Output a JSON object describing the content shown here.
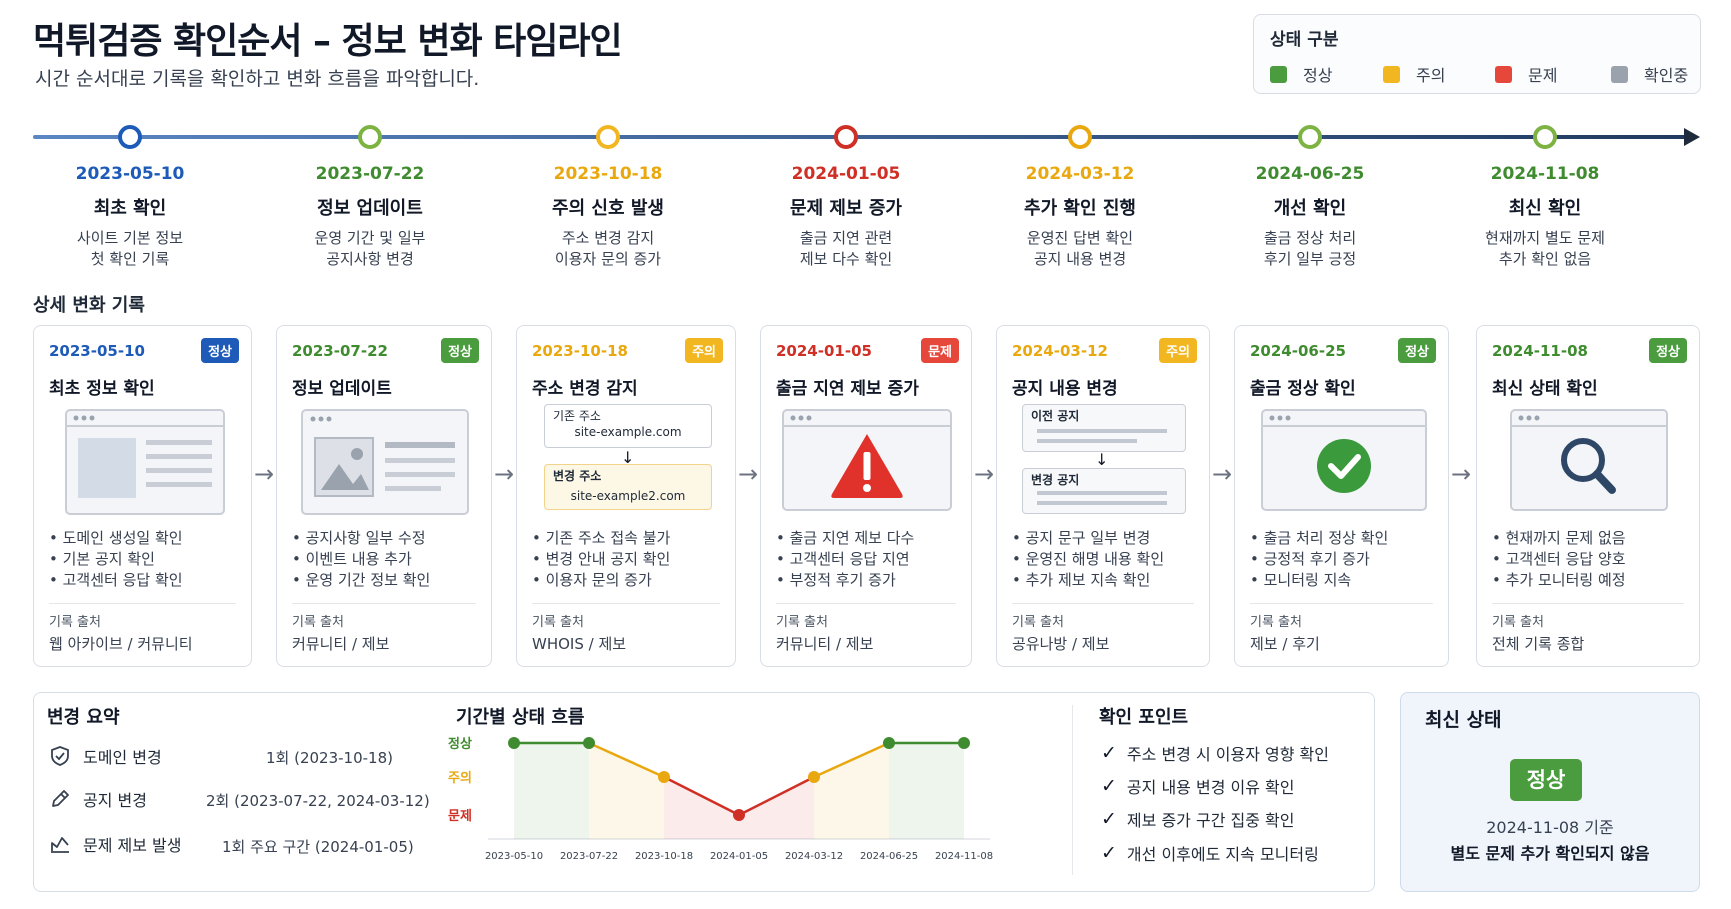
{
  "header": {
    "title": "먹튀검증 확인순서 – 정보 변화 타임라인",
    "subtitle": "시간 순서대로 기록을 확인하고 변화 흐름을 파악합니다."
  },
  "legend": {
    "title": "상태 구분",
    "items": [
      {
        "label": "정상",
        "color": "#4a9c3f"
      },
      {
        "label": "주의",
        "color": "#f2b620"
      },
      {
        "label": "문제",
        "color": "#e5473b"
      },
      {
        "label": "확인중",
        "color": "#9aa3ad"
      }
    ]
  },
  "timeline": [
    {
      "date": "2023-05-10",
      "title": "최초 확인",
      "desc1": "사이트 기본 정보",
      "desc2": "첫 확인 기록",
      "color": "#1e5bb8"
    },
    {
      "date": "2023-07-22",
      "title": "정보 업데이트",
      "desc1": "운영 기간 및 일부",
      "desc2": "공지사항 변경",
      "color": "#3f8b2f"
    },
    {
      "date": "2023-10-18",
      "title": "주의 신호 발생",
      "desc1": "주소 변경 감지",
      "desc2": "이용자 문의 증가",
      "color": "#e9a80f"
    },
    {
      "date": "2024-01-05",
      "title": "문제 제보 증가",
      "desc1": "출금 지연 관련",
      "desc2": "제보 다수 확인",
      "color": "#cf2f25"
    },
    {
      "date": "2024-03-12",
      "title": "추가 확인 진행",
      "desc1": "운영진 답변 확인",
      "desc2": "공지 내용 변경",
      "color": "#e9a80f"
    },
    {
      "date": "2024-06-25",
      "title": "개선 확인",
      "desc1": "출금 정상 처리",
      "desc2": "후기 일부 긍정",
      "color": "#3f8b2f"
    },
    {
      "date": "2024-11-08",
      "title": "최신 확인",
      "desc1": "현재까지 별도 문제",
      "desc2": "추가 확인 없음",
      "color": "#3f8b2f"
    }
  ],
  "detail_label": "상세 변화 기록",
  "cards": [
    {
      "date": "2023-05-10",
      "badge": "정상",
      "title": "최초 정보 확인",
      "bullets": [
        "도메인 생성일 확인",
        "기본 공지 확인",
        "고객센터 응답 확인"
      ],
      "source_label": "기록 출처",
      "source": "웹 아카이브 / 커뮤니티",
      "date_color": "#1e5bb8",
      "badge_color": "#1e5bb8"
    },
    {
      "date": "2023-07-22",
      "badge": "정상",
      "title": "정보 업데이트",
      "bullets": [
        "공지사항 일부 수정",
        "이벤트 내용 추가",
        "운영 기간 정보 확인"
      ],
      "source_label": "기록 출처",
      "source": "커뮤니티 / 제보",
      "date_color": "#3f8b2f",
      "badge_color": "#4a9c3f"
    },
    {
      "date": "2023-10-18",
      "badge": "주의",
      "title": "주소 변경 감지",
      "bullets": [
        "기존 주소 접속 불가",
        "변경 안내 공지 확인",
        "이용자 문의 증가"
      ],
      "source_label": "기록 출처",
      "source": "WHOIS / 제보",
      "date_color": "#e9a80f",
      "badge_color": "#f2b620",
      "illus": {
        "old_label": "기존 주소",
        "old_url": "site-example.com",
        "new_label": "변경 주소",
        "new_url": "site-example2.com"
      }
    },
    {
      "date": "2024-01-05",
      "badge": "문제",
      "title": "출금 지연 제보 증가",
      "bullets": [
        "출금 지연 제보 다수",
        "고객센터 응답 지연",
        "부정적 후기 증가"
      ],
      "source_label": "기록 출처",
      "source": "커뮤니티 / 제보",
      "date_color": "#cf2f25",
      "badge_color": "#e5473b"
    },
    {
      "date": "2024-03-12",
      "badge": "주의",
      "title": "공지 내용 변경",
      "bullets": [
        "공지 문구 일부 변경",
        "운영진 해명 내용 확인",
        "추가 제보 지속 확인"
      ],
      "source_label": "기록 출처",
      "source": "공유나방 / 제보",
      "date_color": "#e9a80f",
      "badge_color": "#f2b620",
      "illus": {
        "old_label": "이전 공지",
        "new_label": "변경 공지"
      }
    },
    {
      "date": "2024-06-25",
      "badge": "정상",
      "title": "출금 정상 확인",
      "bullets": [
        "출금 처리 정상 확인",
        "긍정적 후기 증가",
        "모니터링 지속"
      ],
      "source_label": "기록 출처",
      "source": "제보 / 후기",
      "date_color": "#3f8b2f",
      "badge_color": "#4a9c3f"
    },
    {
      "date": "2024-11-08",
      "badge": "정상",
      "title": "최신 상태 확인",
      "bullets": [
        "현재까지 문제 없음",
        "고객센터 응답 양호",
        "추가 모니터링 예정"
      ],
      "source_label": "기록 출처",
      "source": "전체 기록 종합",
      "date_color": "#3f8b2f",
      "badge_color": "#4a9c3f"
    }
  ],
  "summary": {
    "title": "변경 요약",
    "rows": [
      {
        "label": "도메인 변경",
        "value": "1회 (2023-10-18)",
        "icon": "shield-check-icon"
      },
      {
        "label": "공지 변경",
        "value": "2회 (2023-07-22, 2024-03-12)",
        "icon": "pencil-icon"
      },
      {
        "label": "문제 제보 발생",
        "value": "1회 주요 구간 (2024-01-05)",
        "icon": "chart-line-icon"
      }
    ]
  },
  "chart_data": {
    "type": "line",
    "title": "기간별 상태 흐름",
    "x": [
      "2023-05-10",
      "2023-07-22",
      "2023-10-18",
      "2024-01-05",
      "2024-03-12",
      "2024-06-25",
      "2024-11-08"
    ],
    "y_levels": [
      "정상",
      "주의",
      "문제"
    ],
    "values": [
      "정상",
      "정상",
      "주의",
      "문제",
      "주의",
      "정상",
      "정상"
    ],
    "level_colors": {
      "정상": "#3f8b2f",
      "주의": "#e9a80f",
      "문제": "#cf2f25"
    }
  },
  "checkpoints": {
    "title": "확인 포인트",
    "items": [
      "주소 변경 시 이용자 영향 확인",
      "공지 내용 변경 이유 확인",
      "제보 증가 구간 집중 확인",
      "개선 이후에도 지속 모니터링"
    ]
  },
  "latest_status": {
    "title": "최신 상태",
    "badge": "정상",
    "date": "2024-11-08 기준",
    "note": "별도 문제 추가 확인되지 않음"
  }
}
